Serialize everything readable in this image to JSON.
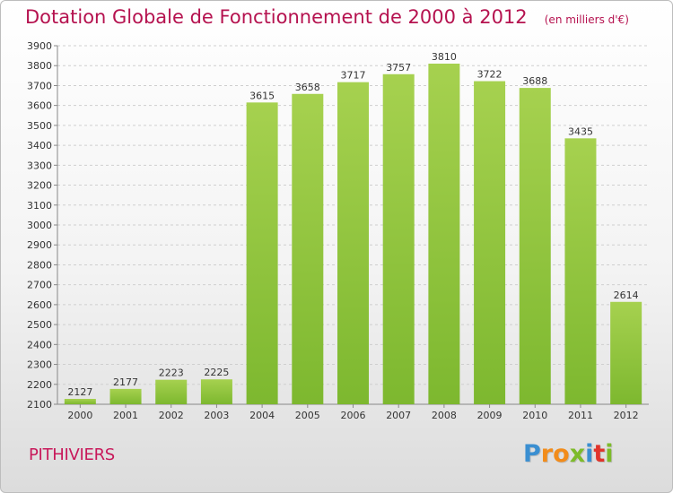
{
  "chart_data": {
    "type": "bar",
    "title": "Dotation Globale de Fonctionnement de 2000 à 2012",
    "subtitle": "(en milliers d'€)",
    "categories": [
      "2000",
      "2001",
      "2002",
      "2003",
      "2004",
      "2005",
      "2006",
      "2007",
      "2008",
      "2009",
      "2010",
      "2011",
      "2012"
    ],
    "values": [
      2127,
      2177,
      2223,
      2225,
      3615,
      3658,
      3717,
      3757,
      3810,
      3722,
      3688,
      3435,
      2614
    ],
    "yticks": [
      2100,
      2200,
      2300,
      2400,
      2500,
      2600,
      2700,
      2800,
      2900,
      3000,
      3100,
      3200,
      3300,
      3400,
      3500,
      3600,
      3700,
      3800,
      3900
    ],
    "ylim": [
      2100,
      3900
    ],
    "grid": true,
    "bar_color": "#7db82f",
    "bar_color_light": "#a6d14f"
  },
  "footer": {
    "place": "PITHIVIERS",
    "logo_letters": [
      "P",
      "r",
      "o",
      "x",
      "i",
      "t",
      "i"
    ],
    "logo_colors": [
      "#3a8fd1",
      "#f28c1a",
      "#f28c1a",
      "#7dbb2a",
      "#3a8fd1",
      "#e0342b",
      "#7dbb2a"
    ]
  }
}
